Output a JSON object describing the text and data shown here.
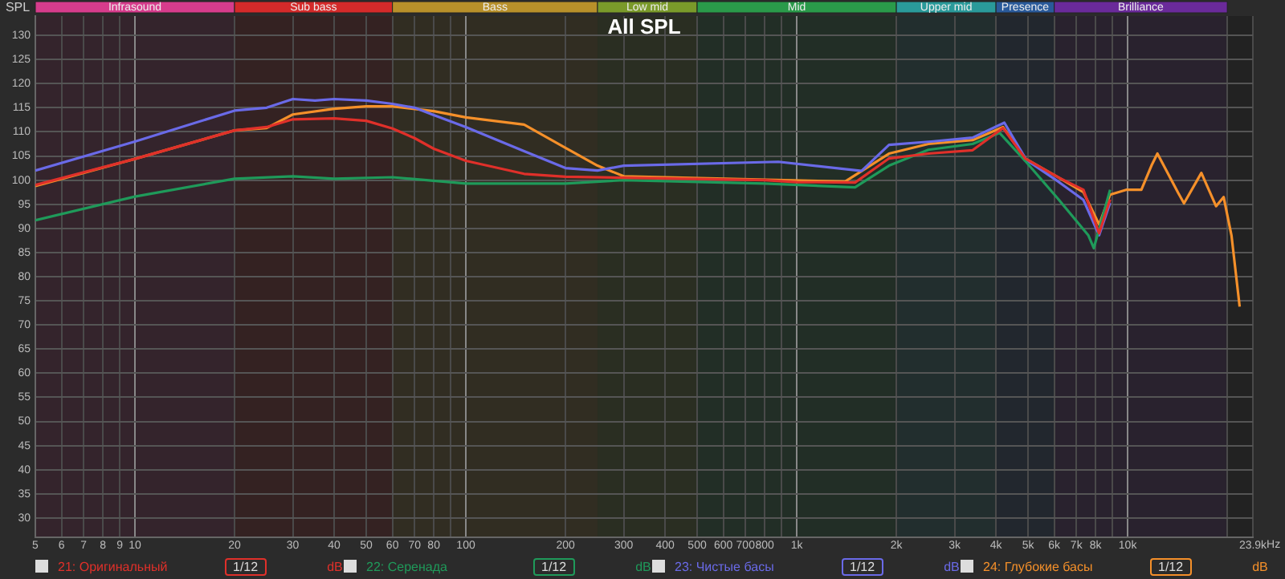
{
  "chart_data": {
    "type": "line",
    "title": "All SPL",
    "ylabel": "SPL",
    "xlim": [
      5,
      23900
    ],
    "ylim": [
      26,
      134
    ],
    "log": "x",
    "grid": true,
    "legend": "bottom",
    "marker": "none",
    "line_style": "solid",
    "xticks": [
      5,
      6,
      7,
      8,
      9,
      10,
      20,
      30,
      40,
      50,
      60,
      70,
      80,
      {
        "value": 90,
        "label": null
      },
      100,
      200,
      300,
      400,
      500,
      600,
      700,
      800,
      {
        "value": 900,
        "label": null
      },
      {
        "value": 1000,
        "label": "1k"
      },
      {
        "value": 2000,
        "label": "2k"
      },
      {
        "value": 3000,
        "label": "3k"
      },
      {
        "value": 4000,
        "label": "4k"
      },
      {
        "value": 5000,
        "label": "5k"
      },
      {
        "value": 6000,
        "label": "6k"
      },
      {
        "value": 7000,
        "label": "7k"
      },
      {
        "value": 8000,
        "label": "8k"
      },
      {
        "value": 9000,
        "label": null
      },
      {
        "value": 10000,
        "label": "10k"
      },
      {
        "value": 20000,
        "label": null
      },
      {
        "value": 23900,
        "label": "23.9k"
      }
    ],
    "xlabel": "Hz",
    "yticks": [
      30,
      35,
      40,
      45,
      50,
      55,
      60,
      65,
      70,
      75,
      80,
      85,
      90,
      95,
      100,
      105,
      110,
      115,
      120,
      125,
      130
    ],
    "bands": [
      {
        "axis": "x",
        "from": 5,
        "to": 20,
        "label": "Infrasound",
        "color": "#d63c8c"
      },
      {
        "axis": "x",
        "from": 20,
        "to": 60,
        "label": "Sub bass",
        "color": "#d42a2a"
      },
      {
        "axis": "x",
        "from": 60,
        "to": 250,
        "label": "Bass",
        "color": "#b8902a"
      },
      {
        "axis": "x",
        "from": 250,
        "to": 500,
        "label": "Low mid",
        "color": "#7a9a2a"
      },
      {
        "axis": "x",
        "from": 500,
        "to": 2000,
        "label": "Mid",
        "color": "#2a9a4a"
      },
      {
        "axis": "x",
        "from": 2000,
        "to": 4000,
        "label": "Upper mid",
        "color": "#2a9a9a"
      },
      {
        "axis": "x",
        "from": 4000,
        "to": 6000,
        "label": "Presence",
        "color": "#2a5a9a"
      },
      {
        "axis": "x",
        "from": 6000,
        "to": 20000,
        "label": "Brilliance",
        "color": "#6a2a9a"
      }
    ],
    "annotations": [
      "1/12",
      "dB"
    ],
    "series": [
      {
        "name": "21: Оригинальный",
        "color": "#e0302a",
        "x": [
          5,
          10,
          20,
          25,
          30,
          40,
          50,
          60,
          70,
          80,
          100,
          150,
          200,
          300,
          800,
          1000,
          1500,
          1900,
          2500,
          3400,
          4200,
          4900,
          6200,
          7350,
          8200,
          8850
        ],
        "values": [
          99,
          104.4,
          110.3,
          111,
          112.6,
          112.8,
          112.3,
          110.7,
          108.7,
          106.5,
          104,
          101.3,
          100.7,
          100.5,
          100,
          99.6,
          99.5,
          104.5,
          105.5,
          106.2,
          110.8,
          104.5,
          100.5,
          98,
          89,
          96
        ]
      },
      {
        "name": "22: Серенада",
        "color": "#1f9a5a",
        "x": [
          5,
          10,
          20,
          30,
          40,
          60,
          100,
          200,
          300,
          800,
          1500,
          1900,
          2500,
          3400,
          4100,
          4900,
          6200,
          7600,
          7900,
          8850
        ],
        "values": [
          91.7,
          96.6,
          100.3,
          100.8,
          100.3,
          100.6,
          99.3,
          99.3,
          100,
          99.3,
          98.5,
          103,
          106.3,
          107.5,
          109.8,
          104,
          95.9,
          88.6,
          85.9,
          98
        ]
      },
      {
        "name": "23: Чистые басы",
        "color": "#6a6ae8",
        "x": [
          5,
          10,
          20,
          25,
          30,
          35,
          40,
          50,
          60,
          70,
          80,
          100,
          150,
          200,
          250,
          300,
          880,
          1570,
          1900,
          2550,
          3400,
          4240,
          4940,
          6170,
          7350,
          8200,
          8850
        ],
        "values": [
          102,
          108,
          114.4,
          115,
          116.8,
          116.5,
          116.8,
          116.5,
          115.8,
          115,
          113.5,
          111,
          106,
          102.5,
          102,
          103,
          103.8,
          101.9,
          107.3,
          108,
          108.8,
          111.9,
          104.2,
          99.7,
          95.9,
          88.6,
          95.3
        ]
      },
      {
        "name": "24: Глубокие басы",
        "color": "#f5902a",
        "x": [
          5,
          10,
          20,
          25,
          30,
          40,
          50,
          60,
          80,
          100,
          150,
          200,
          250,
          300,
          1400,
          1900,
          2500,
          3400,
          4200,
          4900,
          6200,
          7350,
          8200,
          8850,
          9890,
          11000,
          11800,
          12300,
          14200,
          14800,
          16700,
          18500,
          19500,
          20600,
          21800
        ],
        "values": [
          98.8,
          104.4,
          110.3,
          110.8,
          113.6,
          114.8,
          115.3,
          115.3,
          114.3,
          113,
          111.5,
          106.7,
          103,
          100.8,
          99.7,
          105.5,
          107.5,
          108.3,
          111,
          104.5,
          100.5,
          97.5,
          90.8,
          97,
          98,
          98,
          103,
          105.5,
          97.4,
          95.2,
          101.5,
          94.6,
          96.5,
          88.5,
          73.8
        ]
      }
    ]
  }
}
